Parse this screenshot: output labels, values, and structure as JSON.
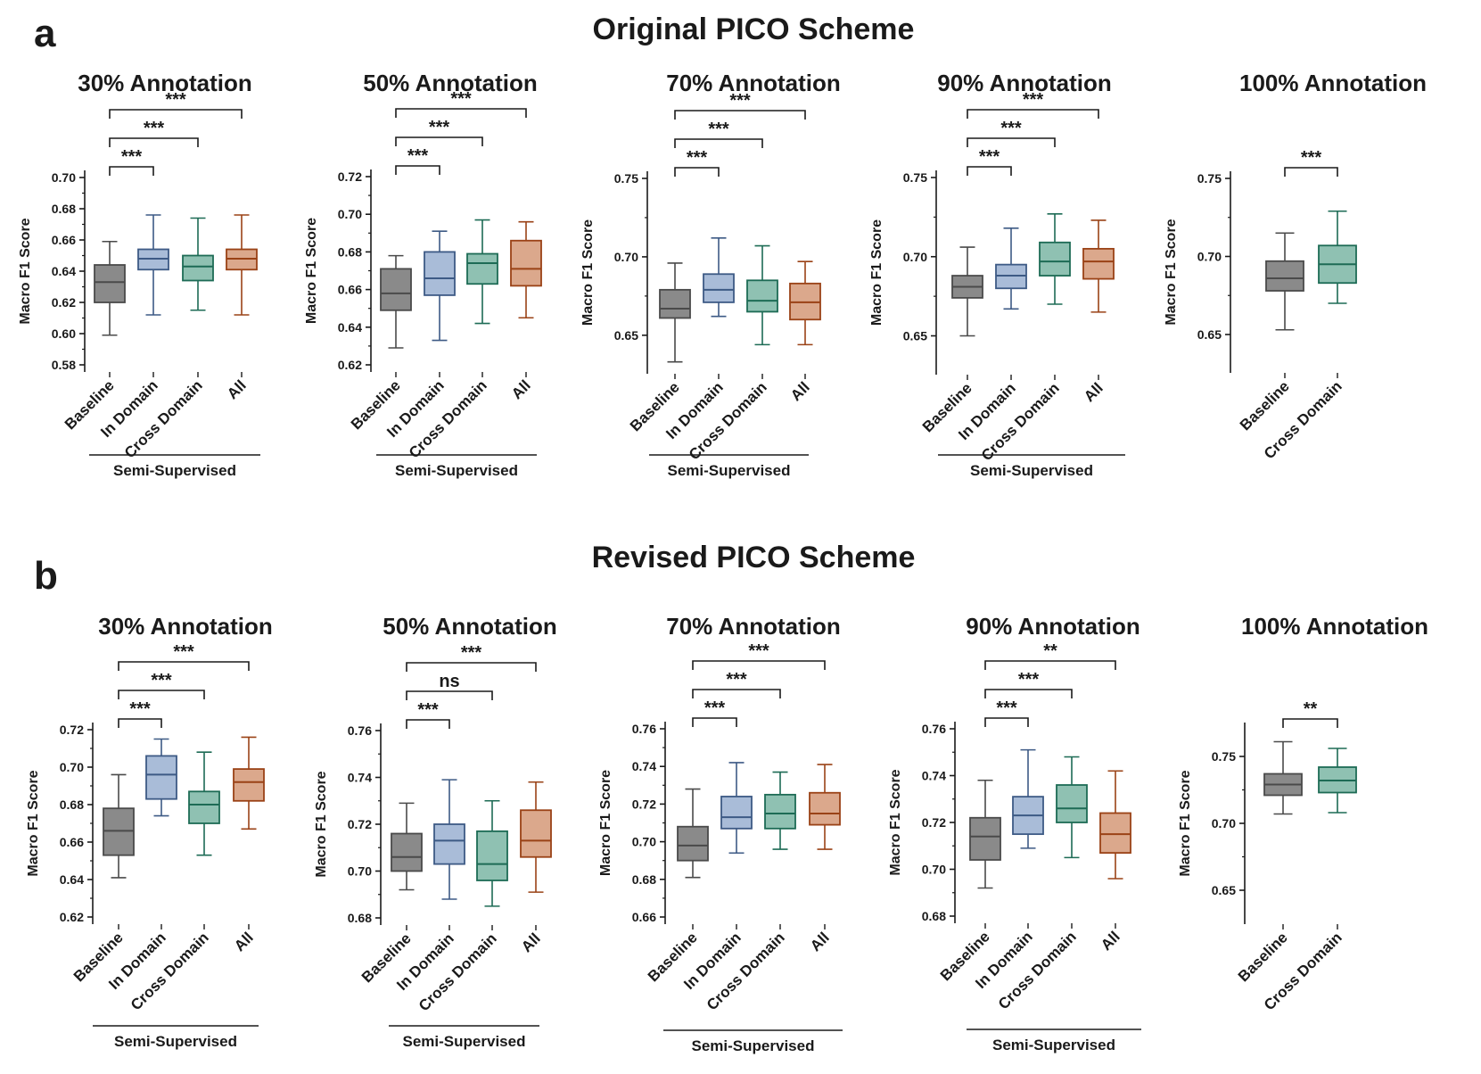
{
  "figure": {
    "sections": [
      {
        "letter": "a",
        "title": "Original PICO Scheme"
      },
      {
        "letter": "b",
        "title": "Revised PICO Scheme"
      }
    ],
    "group_label": "Semi-Supervised",
    "colors": {
      "Baseline": {
        "fill": "#8a8a8a",
        "stroke": "#4a4a4a"
      },
      "In Domain": {
        "fill": "#a9bcd8",
        "stroke": "#3d5a85"
      },
      "Cross Domain": {
        "fill": "#8fc1b2",
        "stroke": "#1d6b55"
      },
      "All": {
        "fill": "#dba88c",
        "stroke": "#9a4216"
      }
    }
  },
  "chart_data": [
    {
      "type": "box",
      "section": "a",
      "title": "30% Annotation",
      "ylabel": "Macro F1 Score",
      "ylim": [
        0.58,
        0.7
      ],
      "yticks": [
        "0.58",
        "0.60",
        "0.62",
        "0.64",
        "0.66",
        "0.68",
        "0.70"
      ],
      "categories": [
        "Baseline",
        "In Domain",
        "Cross Domain",
        "All"
      ],
      "boxes": [
        {
          "min": 0.599,
          "q1": 0.62,
          "median": 0.633,
          "q3": 0.644,
          "max": 0.659
        },
        {
          "min": 0.612,
          "q1": 0.641,
          "median": 0.648,
          "q3": 0.654,
          "max": 0.676
        },
        {
          "min": 0.615,
          "q1": 0.634,
          "median": 0.643,
          "q3": 0.65,
          "max": 0.674
        },
        {
          "min": 0.612,
          "q1": 0.641,
          "median": 0.648,
          "q3": 0.654,
          "max": 0.676
        }
      ],
      "significance": [
        {
          "from": 0,
          "to": 1,
          "label": "***"
        },
        {
          "from": 0,
          "to": 2,
          "label": "***"
        },
        {
          "from": 0,
          "to": 3,
          "label": "***"
        }
      ],
      "group_label": "Semi-Supervised"
    },
    {
      "type": "box",
      "section": "a",
      "title": "50% Annotation",
      "ylabel": "Macro F1 Score",
      "ylim": [
        0.62,
        0.72
      ],
      "yticks": [
        "0.62",
        "0.64",
        "0.66",
        "0.68",
        "0.70",
        "0.72"
      ],
      "categories": [
        "Baseline",
        "In Domain",
        "Cross Domain",
        "All"
      ],
      "boxes": [
        {
          "min": 0.629,
          "q1": 0.649,
          "median": 0.658,
          "q3": 0.671,
          "max": 0.678
        },
        {
          "min": 0.633,
          "q1": 0.657,
          "median": 0.666,
          "q3": 0.68,
          "max": 0.691
        },
        {
          "min": 0.642,
          "q1": 0.663,
          "median": 0.674,
          "q3": 0.679,
          "max": 0.697
        },
        {
          "min": 0.645,
          "q1": 0.662,
          "median": 0.671,
          "q3": 0.686,
          "max": 0.696
        }
      ],
      "significance": [
        {
          "from": 0,
          "to": 1,
          "label": "***"
        },
        {
          "from": 0,
          "to": 2,
          "label": "***"
        },
        {
          "from": 0,
          "to": 3,
          "label": "***"
        }
      ],
      "group_label": "Semi-Supervised"
    },
    {
      "type": "box",
      "section": "a",
      "title": "70% Annotation",
      "ylabel": "Macro F1 Score",
      "ylim": [
        0.63,
        0.75
      ],
      "yticks": [
        "0.65",
        "0.70",
        "0.75"
      ],
      "categories": [
        "Baseline",
        "In Domain",
        "Cross Domain",
        "All"
      ],
      "boxes": [
        {
          "min": 0.633,
          "q1": 0.661,
          "median": 0.667,
          "q3": 0.679,
          "max": 0.696
        },
        {
          "min": 0.662,
          "q1": 0.671,
          "median": 0.679,
          "q3": 0.689,
          "max": 0.712
        },
        {
          "min": 0.644,
          "q1": 0.665,
          "median": 0.672,
          "q3": 0.685,
          "max": 0.707
        },
        {
          "min": 0.644,
          "q1": 0.66,
          "median": 0.671,
          "q3": 0.683,
          "max": 0.697
        }
      ],
      "significance": [
        {
          "from": 0,
          "to": 1,
          "label": "***"
        },
        {
          "from": 0,
          "to": 2,
          "label": "***"
        },
        {
          "from": 0,
          "to": 3,
          "label": "***"
        }
      ],
      "group_label": "Semi-Supervised"
    },
    {
      "type": "box",
      "section": "a",
      "title": "90% Annotation",
      "ylabel": "Macro F1 Score",
      "ylim": [
        0.63,
        0.75
      ],
      "yticks": [
        "0.65",
        "0.70",
        "0.75"
      ],
      "categories": [
        "Baseline",
        "In Domain",
        "Cross Domain",
        "All"
      ],
      "boxes": [
        {
          "min": 0.65,
          "q1": 0.674,
          "median": 0.681,
          "q3": 0.688,
          "max": 0.706
        },
        {
          "min": 0.667,
          "q1": 0.68,
          "median": 0.688,
          "q3": 0.695,
          "max": 0.718
        },
        {
          "min": 0.67,
          "q1": 0.688,
          "median": 0.697,
          "q3": 0.709,
          "max": 0.727
        },
        {
          "min": 0.665,
          "q1": 0.686,
          "median": 0.697,
          "q3": 0.705,
          "max": 0.723
        }
      ],
      "significance": [
        {
          "from": 0,
          "to": 1,
          "label": "***"
        },
        {
          "from": 0,
          "to": 2,
          "label": "***"
        },
        {
          "from": 0,
          "to": 3,
          "label": "***"
        }
      ],
      "group_label": "Semi-Supervised"
    },
    {
      "type": "box",
      "section": "a",
      "title": "100% Annotation",
      "ylabel": "Macro F1 Score",
      "ylim": [
        0.63,
        0.75
      ],
      "yticks": [
        "0.65",
        "0.70",
        "0.75"
      ],
      "categories": [
        "Baseline",
        "Cross Domain"
      ],
      "boxes": [
        {
          "min": 0.653,
          "q1": 0.678,
          "median": 0.686,
          "q3": 0.697,
          "max": 0.715
        },
        {
          "min": 0.67,
          "q1": 0.683,
          "median": 0.695,
          "q3": 0.707,
          "max": 0.729
        }
      ],
      "significance": [
        {
          "from": 0,
          "to": 1,
          "label": "***"
        }
      ]
    },
    {
      "type": "box",
      "section": "b",
      "title": "30% Annotation",
      "ylabel": "Macro F1 Score",
      "ylim": [
        0.62,
        0.72
      ],
      "yticks": [
        "0.62",
        "0.64",
        "0.66",
        "0.68",
        "0.70",
        "0.72"
      ],
      "categories": [
        "Baseline",
        "In Domain",
        "Cross Domain",
        "All"
      ],
      "boxes": [
        {
          "min": 0.641,
          "q1": 0.653,
          "median": 0.666,
          "q3": 0.678,
          "max": 0.696
        },
        {
          "min": 0.674,
          "q1": 0.683,
          "median": 0.696,
          "q3": 0.706,
          "max": 0.715
        },
        {
          "min": 0.653,
          "q1": 0.67,
          "median": 0.68,
          "q3": 0.687,
          "max": 0.708
        },
        {
          "min": 0.667,
          "q1": 0.682,
          "median": 0.692,
          "q3": 0.699,
          "max": 0.716
        }
      ],
      "significance": [
        {
          "from": 0,
          "to": 1,
          "label": "***"
        },
        {
          "from": 0,
          "to": 2,
          "label": "***"
        },
        {
          "from": 0,
          "to": 3,
          "label": "***"
        }
      ],
      "group_label": "Semi-Supervised"
    },
    {
      "type": "box",
      "section": "b",
      "title": "50% Annotation",
      "ylabel": "Macro F1 Score",
      "ylim": [
        0.68,
        0.76
      ],
      "yticks": [
        "0.68",
        "0.70",
        "0.72",
        "0.74",
        "0.76"
      ],
      "categories": [
        "Baseline",
        "In Domain",
        "Cross Domain",
        "All"
      ],
      "boxes": [
        {
          "min": 0.692,
          "q1": 0.7,
          "median": 0.706,
          "q3": 0.716,
          "max": 0.729
        },
        {
          "min": 0.688,
          "q1": 0.703,
          "median": 0.713,
          "q3": 0.72,
          "max": 0.739
        },
        {
          "min": 0.685,
          "q1": 0.696,
          "median": 0.703,
          "q3": 0.717,
          "max": 0.73
        },
        {
          "min": 0.691,
          "q1": 0.706,
          "median": 0.713,
          "q3": 0.726,
          "max": 0.738
        }
      ],
      "significance": [
        {
          "from": 0,
          "to": 1,
          "label": "***"
        },
        {
          "from": 0,
          "to": 2,
          "label": "ns"
        },
        {
          "from": 0,
          "to": 3,
          "label": "***"
        }
      ],
      "group_label": "Semi-Supervised"
    },
    {
      "type": "box",
      "section": "b",
      "title": "70% Annotation",
      "ylabel": "Macro F1 Score",
      "ylim": [
        0.66,
        0.76
      ],
      "yticks": [
        "0.66",
        "0.68",
        "0.70",
        "0.72",
        "0.74",
        "0.76"
      ],
      "categories": [
        "Baseline",
        "In Domain",
        "Cross Domain",
        "All"
      ],
      "boxes": [
        {
          "min": 0.681,
          "q1": 0.69,
          "median": 0.698,
          "q3": 0.708,
          "max": 0.728
        },
        {
          "min": 0.694,
          "q1": 0.707,
          "median": 0.713,
          "q3": 0.724,
          "max": 0.742
        },
        {
          "min": 0.696,
          "q1": 0.707,
          "median": 0.715,
          "q3": 0.725,
          "max": 0.737
        },
        {
          "min": 0.696,
          "q1": 0.709,
          "median": 0.715,
          "q3": 0.726,
          "max": 0.741
        }
      ],
      "significance": [
        {
          "from": 0,
          "to": 1,
          "label": "***"
        },
        {
          "from": 0,
          "to": 2,
          "label": "***"
        },
        {
          "from": 0,
          "to": 3,
          "label": "***"
        }
      ],
      "group_label": "Semi-Supervised"
    },
    {
      "type": "box",
      "section": "b",
      "title": "90% Annotation",
      "ylabel": "Macro F1 Score",
      "ylim": [
        0.68,
        0.76
      ],
      "yticks": [
        "0.68",
        "0.70",
        "0.72",
        "0.74",
        "0.76"
      ],
      "categories": [
        "Baseline",
        "In Domain",
        "Cross Domain",
        "All"
      ],
      "boxes": [
        {
          "min": 0.692,
          "q1": 0.704,
          "median": 0.714,
          "q3": 0.722,
          "max": 0.738
        },
        {
          "min": 0.709,
          "q1": 0.715,
          "median": 0.723,
          "q3": 0.731,
          "max": 0.751
        },
        {
          "min": 0.705,
          "q1": 0.72,
          "median": 0.726,
          "q3": 0.736,
          "max": 0.748
        },
        {
          "min": 0.696,
          "q1": 0.707,
          "median": 0.715,
          "q3": 0.724,
          "max": 0.742
        }
      ],
      "significance": [
        {
          "from": 0,
          "to": 1,
          "label": "***"
        },
        {
          "from": 0,
          "to": 2,
          "label": "***"
        },
        {
          "from": 0,
          "to": 3,
          "label": "**"
        }
      ],
      "group_label": "Semi-Supervised"
    },
    {
      "type": "box",
      "section": "b",
      "title": "100% Annotation",
      "ylabel": "Macro F1 Score",
      "ylim": [
        0.63,
        0.77
      ],
      "yticks": [
        "0.65",
        "0.70",
        "0.75"
      ],
      "categories": [
        "Baseline",
        "Cross Domain"
      ],
      "boxes": [
        {
          "min": 0.707,
          "q1": 0.721,
          "median": 0.729,
          "q3": 0.737,
          "max": 0.761
        },
        {
          "min": 0.708,
          "q1": 0.723,
          "median": 0.732,
          "q3": 0.742,
          "max": 0.756
        }
      ],
      "significance": [
        {
          "from": 0,
          "to": 1,
          "label": "**"
        }
      ]
    }
  ]
}
